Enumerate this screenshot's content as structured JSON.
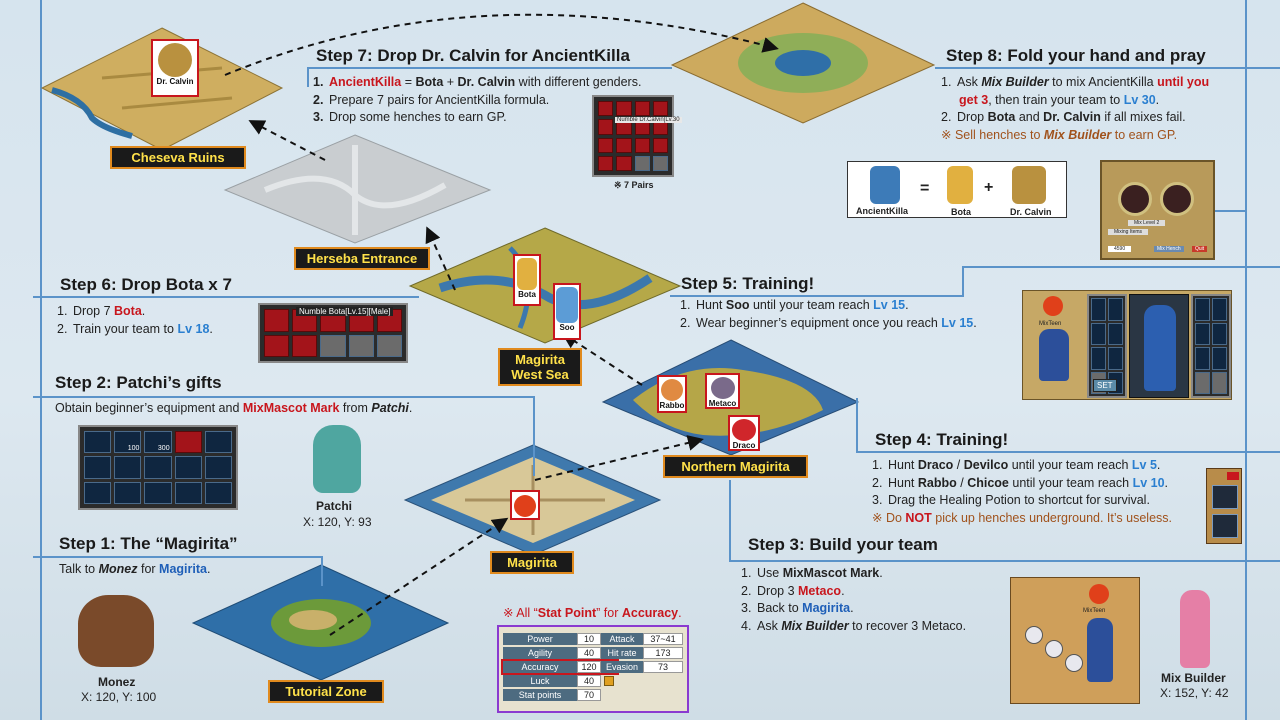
{
  "locations": {
    "cheseva": "Cheseva Ruins",
    "herseba": "Herseba Entrance",
    "west_sea": "Magirita\nWest Sea",
    "northern": "Northern Magirita",
    "magirita": "Magirita",
    "tutorial": "Tutorial Zone"
  },
  "tags": {
    "calvin": "Dr. Calvin",
    "bota": "Bota",
    "soo": "Soo",
    "rabbo": "Rabbo",
    "metaco": "Metaco",
    "draco": "Draco"
  },
  "step7": {
    "title": "Step 7: Drop Dr. Calvin for AncientKilla",
    "l1_num": "1.",
    "l1_a": "AncientKilla",
    "l1_b": " = ",
    "l1_c": "Bota",
    "l1_d": " + ",
    "l1_e": "Dr. Calvin",
    "l1_f": " with different genders.",
    "l2_num": "2.",
    "l2": "Prepare 7 pairs for AncientKilla formula.",
    "l3_num": "3.",
    "l3": "Drop some henches to earn GP.",
    "grid_label": "Numble Dr.Calvin[Lv.30",
    "caption": "※ 7 Pairs"
  },
  "step8": {
    "title": "Step 8: Fold your hand and pray",
    "l1_num": "1.",
    "l1_a": "Ask ",
    "l1_b": "Mix Builder",
    "l1_c": " to mix AncientKilla ",
    "l1_d": "until you",
    "l1_e": "get 3",
    "l1_f": ", then train your team to ",
    "l1_g": "Lv 30",
    ".": ".",
    "l1_h": ".",
    "l2_num": "2.",
    "l2_a": "Drop ",
    "l2_b": "Bota",
    "l2_c": " and ",
    "l2_d": "Dr. Calvin",
    "l2_e": " if all mixes fail.",
    "note_a": "※ Sell henches to ",
    "note_b": "Mix Builder",
    "note_c": " to earn GP.",
    "formula": {
      "a": "AncientKilla",
      "eq": "=",
      "b": "Bota",
      "plus": "+",
      "c": "Dr. Calvin"
    },
    "mix_level": "Mix Level 2",
    "mixing": "Mixing Items",
    "gp": "4590",
    "hench": "Mix Hench",
    "quit": "Quit"
  },
  "step6": {
    "title": "Step 6: Drop Bota x 7",
    "l1_num": "1.",
    "l1_a": "Drop 7 ",
    "l1_b": "Bota",
    "l1_c": ".",
    "l2_num": "2.",
    "l2_a": "Train your team to ",
    "l2_b": "Lv 18",
    "l2_c": ".",
    "grid_label": "Numble Bota[Lv.15][Male]"
  },
  "step5": {
    "title": "Step 5: Training!",
    "l1_num": "1.",
    "l1_a": "Hunt ",
    "l1_b": "Soo",
    "l1_c": " until your team reach ",
    "l1_d": "Lv 15",
    "l1_e": ".",
    "l2_num": "2.",
    "l2_a": "Wear beginner’s equipment once you reach ",
    "l2_b": "Lv 15",
    "l2_c": ".",
    "hero": "MixTeen",
    "btn": "SET"
  },
  "step2": {
    "title": "Step 2: Patchi’s gifts",
    "l1_a": "Obtain beginner’s equipment and ",
    "l1_b": "MixMascot Mark",
    "l1_c": " from ",
    "l1_d": "Patchi",
    "l1_e": ".",
    "npc": "Patchi",
    "coord": "X: 120, Y: 93",
    "q1": "100",
    "q2": "300"
  },
  "step4": {
    "title": "Step 4: Training!",
    "l1_num": "1.",
    "l1_a": "Hunt ",
    "l1_b": "Draco",
    "l1_c": " / ",
    "l1_d": "Devilco",
    "l1_e": " until your team reach ",
    "l1_f": "Lv 5",
    "l1_g": ".",
    "l2_num": "2.",
    "l2_a": "Hunt ",
    "l2_b": "Rabbo",
    "l2_c": " / ",
    "l2_d": "Chicoe",
    "l2_e": " until your team reach ",
    "l2_f": "Lv 10",
    "l2_g": ".",
    "l3_num": "3.",
    "l3": "Drag the Healing Potion to shortcut for survival.",
    "note_a": "※ Do ",
    "note_b": "NOT",
    "note_c": " pick up henches underground. It’s useless."
  },
  "step1": {
    "title": "Step 1: The “Magirita”",
    "l1_a": "Talk to ",
    "l1_b": "Monez",
    "l1_c": " for ",
    "l1_d": "Magirita",
    "l1_e": ".",
    "npc": "Monez",
    "coord": "X: 120, Y: 100"
  },
  "step3": {
    "title": "Step 3: Build your team",
    "l1_num": "1.",
    "l1_a": "Use ",
    "l1_b": "MixMascot Mark",
    "l1_c": ".",
    "l2_num": "2.",
    "l2_a": "Drop 3 ",
    "l2_b": "Metaco",
    "l2_c": ".",
    "l3_num": "3.",
    "l3_a": "Back to ",
    "l3_b": "Magirita",
    "l3_c": ".",
    "l4_num": "4.",
    "l4_a": "Ask ",
    "l4_b": "Mix Builder",
    "l4_c": " to recover 3 Metaco.",
    "npc": "Mix Builder",
    "coord": "X: 152, Y: 42",
    "hero": "MixTeen"
  },
  "stats": {
    "note_a": "※ All “",
    "note_b": "Stat Point",
    "note_c": "” for ",
    "note_d": "Accuracy",
    "note_e": ".",
    "rows": [
      {
        "label": "Power",
        "value": "10"
      },
      {
        "label": "Agility",
        "value": "40"
      },
      {
        "label": "Accuracy",
        "value": "120"
      },
      {
        "label": "Luck",
        "value": "40"
      },
      {
        "label": "Stat points",
        "value": "70"
      }
    ],
    "right": [
      {
        "label": "Attack",
        "value": "37~41"
      },
      {
        "label": "Hit rate",
        "value": "173"
      },
      {
        "label": "Evasion",
        "value": "73"
      }
    ]
  },
  "colors": {
    "accent_line": "#5b93c9",
    "red": "#c8161d",
    "blue": "#1f5fb8",
    "tag_bg": "#1a1a1a",
    "tag_text": "#ffe14a",
    "tag_border": "#e08a1e"
  }
}
